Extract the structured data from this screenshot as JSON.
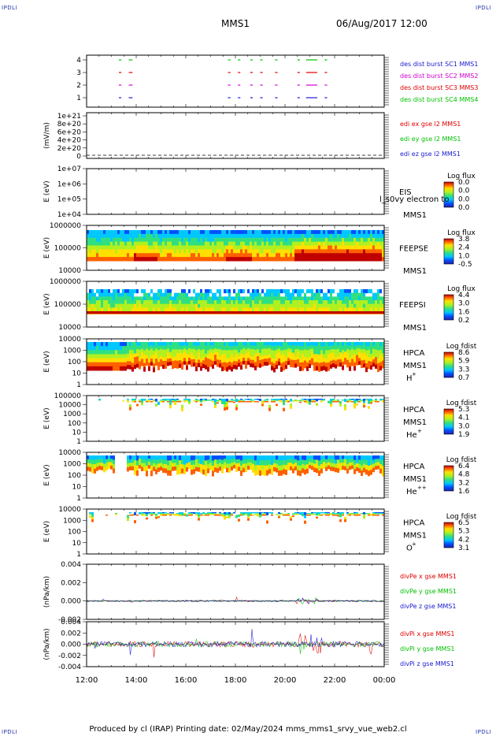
{
  "corners": {
    "tl": "IPDLI",
    "tr": "IPDLI",
    "bl": "IPDLI",
    "br": "IPDLI"
  },
  "header": {
    "spacecraft": "MMS1",
    "datetime": "06/Aug/2017 12:00"
  },
  "footer": {
    "text": "Produced by cl (IRAP)   Printing date: 02/May/2024   mms_mms1_srvy_vue_web2.cl"
  },
  "colors": {
    "blue": "#1a1ad0",
    "magenta": "#d000d0",
    "red": "#e00000",
    "green": "#00c000",
    "black": "#000000"
  },
  "xaxis": {
    "ticks": [
      "12:00",
      "14:00",
      "16:00",
      "18:00",
      "20:00",
      "22:00",
      "00:00"
    ],
    "range_hours": [
      12,
      24
    ]
  },
  "chart_data": [
    {
      "type": "line",
      "panel": "burst",
      "yticks": [
        "4",
        "3",
        "2",
        "1"
      ],
      "series": [
        {
          "name": "des dist burst SC1 MMS1",
          "color": "#1a1ad0"
        },
        {
          "name": "des dist burst SC2 MMS2",
          "color": "#d000d0"
        },
        {
          "name": "des dist burst SC3 MMS3",
          "color": "#e00000"
        },
        {
          "name": "des dist burst SC4 MMS4",
          "color": "#00c000"
        }
      ]
    },
    {
      "type": "line",
      "panel": "edi",
      "ylabel": "(mV/m)",
      "yticks": [
        "1e+21",
        "8e+20",
        "6e+20",
        "4e+20",
        "2e+20",
        "0"
      ],
      "series": [
        {
          "name": "edi ex gse l2 MMS1",
          "color": "#e00000"
        },
        {
          "name": "edi ey gse l2 MMS1",
          "color": "#00c000"
        },
        {
          "name": "edi ez gse l2 MMS1",
          "color": "#1a1ad0"
        }
      ]
    },
    {
      "type": "heatmap",
      "panel": "eis",
      "ylabel": "E (eV)",
      "yticks": [
        "1e+07",
        "1e+06",
        "1e+05",
        "1e+04"
      ],
      "name": "EIS",
      "subname": "MMS1",
      "overlay": "l_s0vy electron to",
      "cbar_title": "Log flux",
      "cbar_ticks": [
        "0.0",
        "0.0",
        "0.0",
        "0.0"
      ]
    },
    {
      "type": "heatmap",
      "panel": "feepse",
      "ylabel": "E (eV)",
      "yticks": [
        "1000000",
        "100000",
        "10000"
      ],
      "name": "FEEPSE",
      "subname": "MMS1",
      "cbar_title": "Log flux",
      "cbar_ticks": [
        "3.8",
        "2.4",
        "1.0",
        "-0.5"
      ]
    },
    {
      "type": "heatmap",
      "panel": "feepsi",
      "ylabel": "E (eV)",
      "yticks": [
        "1000000",
        "100000",
        "10000"
      ],
      "name": "FEEPSI",
      "subname": "MMS1",
      "cbar_title": "Log flux",
      "cbar_ticks": [
        "4.4",
        "3.0",
        "1.6",
        "0.2"
      ]
    },
    {
      "type": "heatmap",
      "panel": "hpca_h",
      "ylabel": "E (eV)",
      "yticks": [
        "10000",
        "1000",
        "100",
        "10",
        "1"
      ],
      "name": "HPCA",
      "subname": "MMS1",
      "species": "H",
      "charge": "+",
      "cbar_title": "Log fdist",
      "cbar_ticks": [
        "8.6",
        "5.9",
        "3.3",
        "0.7"
      ]
    },
    {
      "type": "heatmap",
      "panel": "hpca_he",
      "ylabel": "E (eV)",
      "yticks": [
        "100000",
        "10000",
        "1000",
        "100",
        "10",
        "1"
      ],
      "name": "HPCA",
      "subname": "MMS1",
      "species": "He",
      "charge": "+",
      "cbar_title": "Log fdist",
      "cbar_ticks": [
        "5.3",
        "4.1",
        "3.0",
        "1.9"
      ]
    },
    {
      "type": "heatmap",
      "panel": "hpca_hepp",
      "ylabel": "E (eV)",
      "yticks": [
        "10000",
        "1000",
        "100",
        "10",
        "1"
      ],
      "name": "HPCA",
      "subname": "MMS1",
      "species": "He",
      "charge": "++",
      "cbar_title": "Log fdist",
      "cbar_ticks": [
        "6.4",
        "4.8",
        "3.2",
        "1.6"
      ]
    },
    {
      "type": "heatmap",
      "panel": "hpca_o",
      "ylabel": "E (eV)",
      "yticks": [
        "10000",
        "1000",
        "100",
        "10",
        "1"
      ],
      "name": "HPCA",
      "subname": "MMS1",
      "species": "O",
      "charge": "+",
      "cbar_title": "Log fdist",
      "cbar_ticks": [
        "6.5",
        "5.3",
        "4.2",
        "3.1"
      ]
    },
    {
      "type": "line",
      "panel": "divpe",
      "ylabel": "(nPa/km)",
      "yticks": [
        "0.004",
        "0.002",
        "0.000",
        "-0.002"
      ],
      "series": [
        {
          "name": "divPe x gse MMS1",
          "color": "#e00000"
        },
        {
          "name": "divPe y gse MMS1",
          "color": "#00c000"
        },
        {
          "name": "divPe z gse MMS1",
          "color": "#1a1ad0"
        }
      ]
    },
    {
      "type": "line",
      "panel": "divpi",
      "ylabel": "(nPa/km)",
      "yticks": [
        "0.004",
        "0.002",
        "0.000",
        "-0.002",
        "-0.004"
      ],
      "series": [
        {
          "name": "divPi x gse MMS1",
          "color": "#e00000"
        },
        {
          "name": "divPi y gse MMS1",
          "color": "#00c000"
        },
        {
          "name": "divPi z gse MMS1",
          "color": "#1a1ad0"
        }
      ]
    }
  ]
}
